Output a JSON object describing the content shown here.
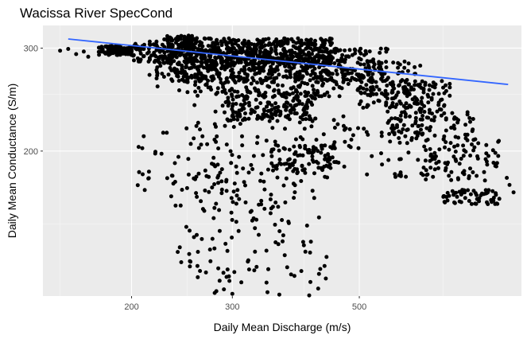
{
  "chart_data": {
    "type": "scatter",
    "title": "Wacissa River SpecCond",
    "xlabel": "Daily Mean Discharge (m/s)",
    "ylabel": "Daily Mean Conductance (S/m)",
    "x_scale": "log10",
    "y_scale": "log10",
    "xlim": [
      140,
      960
    ],
    "ylim": [
      113,
      328
    ],
    "x_ticks": [
      200,
      300,
      500
    ],
    "y_ticks": [
      200,
      300
    ],
    "x_minor_ticks": [
      150,
      250,
      400,
      700
    ],
    "y_minor_ticks": [
      150,
      250
    ],
    "grid": true,
    "legend": "none",
    "point_color": "#000000",
    "trend_color": "#3366ff",
    "trend_line": {
      "x": [
        155,
        910
      ],
      "y": [
        311,
        260
      ]
    },
    "clusters": [
      {
        "x": [
          175,
          200
        ],
        "y": [
          292,
          303
        ],
        "n": 90
      },
      {
        "x": [
          200,
          450
        ],
        "y": [
          283,
          312
        ],
        "n": 520
      },
      {
        "x": [
          220,
          560
        ],
        "y": [
          262,
          300
        ],
        "n": 520
      },
      {
        "x": [
          240,
          640
        ],
        "y": [
          248,
          285
        ],
        "n": 260
      },
      {
        "x": [
          230,
          260
        ],
        "y": [
          300,
          316
        ],
        "n": 70
      },
      {
        "x": [
          290,
          420
        ],
        "y": [
          225,
          255
        ],
        "n": 180
      },
      {
        "x": [
          500,
          720
        ],
        "y": [
          235,
          265
        ],
        "n": 130
      },
      {
        "x": [
          560,
          800
        ],
        "y": [
          205,
          235
        ],
        "n": 90
      },
      {
        "x": [
          640,
          880
        ],
        "y": [
          178,
          210
        ],
        "n": 80
      },
      {
        "x": [
          700,
          880
        ],
        "y": [
          162,
          172
        ],
        "n": 60
      },
      {
        "x": [
          350,
          460
        ],
        "y": [
          183,
          205
        ],
        "n": 90
      },
      {
        "x": [
          240,
          440
        ],
        "y": [
          113,
          240
        ],
        "n": 200
      },
      {
        "x": [
          200,
          360
        ],
        "y": [
          150,
          220
        ],
        "n": 60
      },
      {
        "x": [
          440,
          700
        ],
        "y": [
          180,
          230
        ],
        "n": 60
      }
    ],
    "points": [
      {
        "x": 150,
        "y": 297
      },
      {
        "x": 155,
        "y": 299
      },
      {
        "x": 160,
        "y": 293
      },
      {
        "x": 165,
        "y": 296
      },
      {
        "x": 168,
        "y": 290
      },
      {
        "x": 210,
        "y": 212
      },
      {
        "x": 220,
        "y": 198
      },
      {
        "x": 215,
        "y": 270
      },
      {
        "x": 222,
        "y": 258
      },
      {
        "x": 930,
        "y": 170
      },
      {
        "x": 915,
        "y": 175
      },
      {
        "x": 905,
        "y": 180
      },
      {
        "x": 260,
        "y": 167
      },
      {
        "x": 268,
        "y": 158
      },
      {
        "x": 285,
        "y": 120
      },
      {
        "x": 290,
        "y": 116
      },
      {
        "x": 300,
        "y": 114
      },
      {
        "x": 380,
        "y": 123
      },
      {
        "x": 400,
        "y": 138
      }
    ]
  }
}
